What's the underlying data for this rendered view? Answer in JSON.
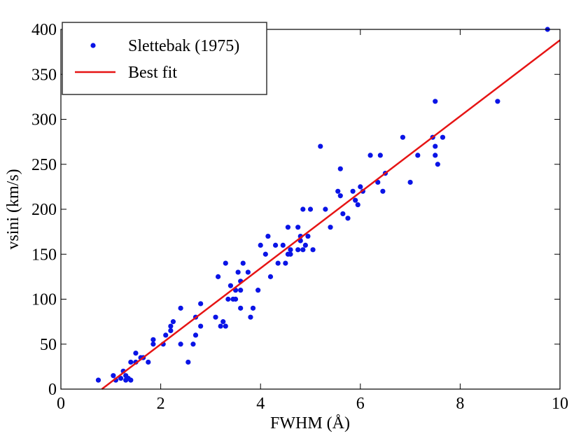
{
  "chart_data": {
    "type": "scatter",
    "xlabel": "FWHM (Å)",
    "ylabel": "vsini (km/s)",
    "xlim": [
      0,
      10
    ],
    "ylim": [
      0,
      400
    ],
    "xticks": [
      0,
      2,
      4,
      6,
      8,
      10
    ],
    "yticks": [
      0,
      50,
      100,
      150,
      200,
      250,
      300,
      350,
      400
    ],
    "legend": "upper left",
    "series": [
      {
        "name": "Slettebak (1975)",
        "color": "#0a14e6",
        "kind": "points",
        "x": [
          0.75,
          1.05,
          1.1,
          1.2,
          1.25,
          1.3,
          1.3,
          1.35,
          1.4,
          1.4,
          1.5,
          1.5,
          1.6,
          1.65,
          1.75,
          1.85,
          1.85,
          2.05,
          2.1,
          2.2,
          2.2,
          2.25,
          2.4,
          2.4,
          2.55,
          2.65,
          2.7,
          2.7,
          2.8,
          2.8,
          3.1,
          3.15,
          3.2,
          3.25,
          3.3,
          3.3,
          3.35,
          3.4,
          3.45,
          3.5,
          3.5,
          3.55,
          3.6,
          3.6,
          3.6,
          3.65,
          3.75,
          3.8,
          3.85,
          3.95,
          4.0,
          4.1,
          4.15,
          4.2,
          4.3,
          4.35,
          4.45,
          4.5,
          4.55,
          4.55,
          4.6,
          4.6,
          4.75,
          4.75,
          4.8,
          4.8,
          4.85,
          4.85,
          4.9,
          4.95,
          5.0,
          5.05,
          5.2,
          5.3,
          5.4,
          5.55,
          5.6,
          5.6,
          5.65,
          5.75,
          5.85,
          5.9,
          5.95,
          6.0,
          6.05,
          6.2,
          6.35,
          6.4,
          6.45,
          6.5,
          6.85,
          7.0,
          7.15,
          7.45,
          7.5,
          7.5,
          7.5,
          7.55,
          7.65,
          8.75,
          9.75
        ],
        "values": [
          10,
          15,
          10,
          12,
          20,
          15,
          10,
          12,
          30,
          10,
          40,
          30,
          35,
          35,
          30,
          50,
          55,
          50,
          60,
          65,
          70,
          75,
          90,
          50,
          30,
          50,
          80,
          60,
          95,
          70,
          80,
          125,
          70,
          75,
          70,
          140,
          100,
          115,
          100,
          110,
          100,
          130,
          90,
          110,
          120,
          140,
          130,
          80,
          90,
          110,
          160,
          150,
          170,
          125,
          160,
          140,
          160,
          140,
          150,
          180,
          150,
          155,
          180,
          155,
          165,
          170,
          155,
          200,
          160,
          170,
          200,
          155,
          270,
          200,
          180,
          220,
          215,
          245,
          195,
          190,
          220,
          210,
          205,
          225,
          220,
          260,
          230,
          260,
          220,
          240,
          280,
          230,
          260,
          280,
          320,
          270,
          260,
          250,
          280,
          320,
          400
        ]
      },
      {
        "name": "Best fit",
        "color": "#e61414",
        "kind": "line",
        "x": [
          0.82,
          10
        ],
        "values": [
          0,
          388
        ]
      }
    ]
  }
}
